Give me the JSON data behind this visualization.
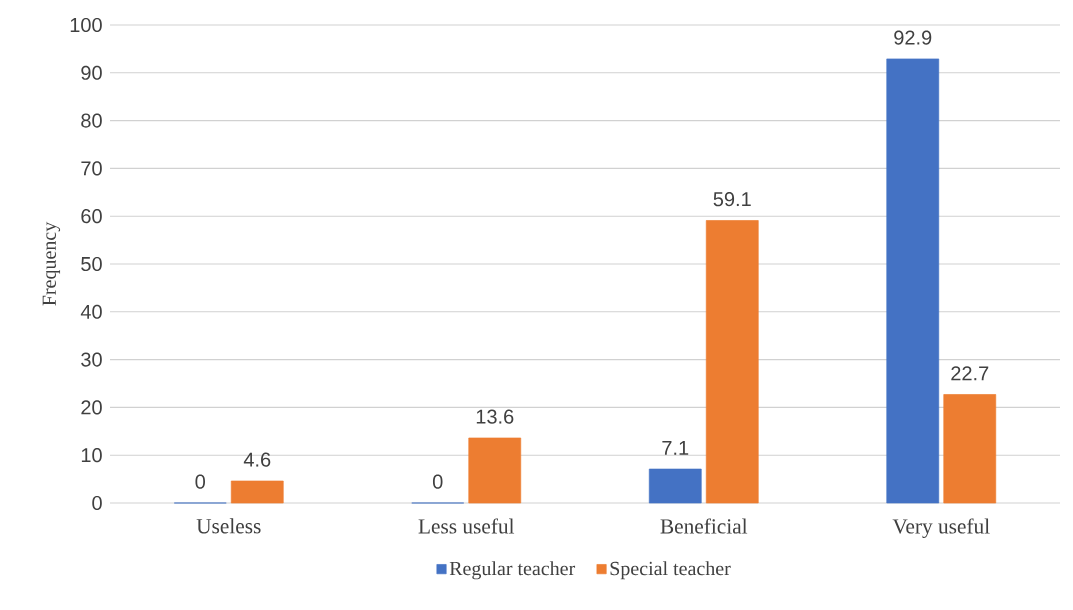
{
  "chart_data": {
    "type": "bar",
    "ylabel": "Frequency",
    "categories": [
      "Useless",
      "Less useful",
      "Beneficial",
      "Very useful"
    ],
    "series": [
      {
        "name": "Regular teacher",
        "color": "#4472c4",
        "values": [
          0,
          0,
          7.1,
          92.9
        ]
      },
      {
        "name": "Special teacher",
        "color": "#ed7d31",
        "values": [
          4.6,
          13.6,
          59.1,
          22.7
        ]
      }
    ],
    "ylim": [
      0,
      100
    ],
    "yticks": [
      0,
      10,
      20,
      30,
      40,
      50,
      60,
      70,
      80,
      90,
      100
    ],
    "grid": "y",
    "legend": "bottom",
    "data_labels": true
  }
}
